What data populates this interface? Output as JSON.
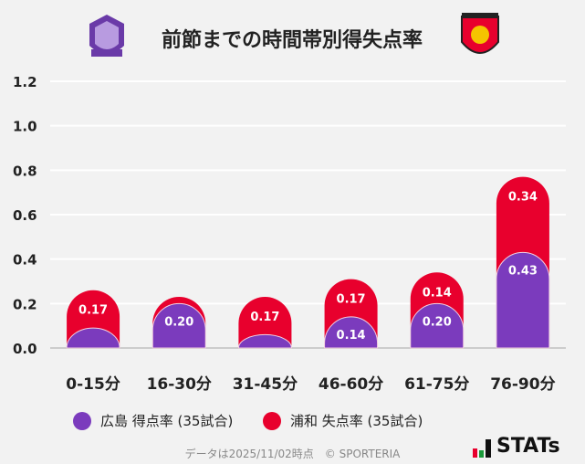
{
  "title": "前節までの時間帯別得失点率",
  "logos": {
    "left": "サンフレッチェ広島",
    "right": "浦和レッズ"
  },
  "chart_data": {
    "type": "bar",
    "stacked": true,
    "title": "前節までの時間帯別得失点率",
    "categories": [
      "0-15分",
      "16-30分",
      "31-45分",
      "46-60分",
      "61-75分",
      "76-90分"
    ],
    "series": [
      {
        "name": "広島 得点率 (35試合)",
        "color": "#7b3bbd",
        "values": [
          0.09,
          0.2,
          0.06,
          0.14,
          0.2,
          0.43
        ],
        "labels": [
          "",
          "0.20",
          "",
          "0.14",
          "0.20",
          "0.43"
        ]
      },
      {
        "name": "浦和 失点率 (35試合)",
        "color": "#e8002d",
        "values": [
          0.17,
          0.03,
          0.17,
          0.17,
          0.14,
          0.34
        ],
        "labels": [
          "0.17",
          "",
          "0.17",
          "0.17",
          "0.14",
          "0.34"
        ]
      }
    ],
    "yticks": [
      "0.0",
      "0.2",
      "0.4",
      "0.6",
      "0.8",
      "1.0",
      "1.2"
    ],
    "ylim": [
      0,
      1.2
    ],
    "grid": true,
    "legend": "bottom"
  },
  "footer": "データは2025/11/02時点　© SPORTERIA",
  "brand": "STATs"
}
